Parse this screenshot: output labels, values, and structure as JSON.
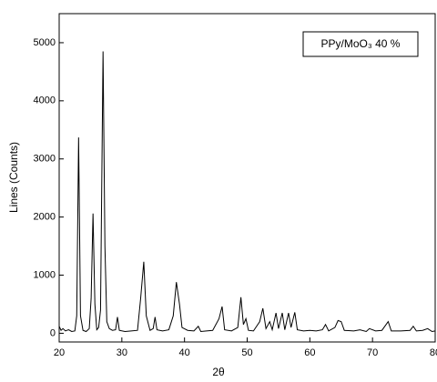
{
  "chart_data": {
    "type": "line",
    "xlabel": "2θ",
    "ylabel": "Lines (Counts)",
    "x": [
      20,
      20.3,
      20.6,
      21,
      21.5,
      22,
      22.5,
      22.8,
      23.1,
      23.4,
      23.8,
      24.3,
      24.8,
      25.1,
      25.4,
      25.7,
      26.0,
      26.3,
      26.6,
      27.0,
      27.3,
      27.6,
      28.0,
      28.5,
      29.0,
      29.3,
      29.6,
      30.5,
      31.5,
      32.5,
      33.0,
      33.5,
      33.9,
      34.5,
      35.0,
      35.3,
      35.6,
      36.5,
      37.5,
      38.2,
      38.7,
      39.2,
      39.6,
      40.5,
      41.5,
      42.2,
      42.6,
      43.5,
      44.5,
      45.5,
      46.0,
      46.4,
      47.5,
      48.5,
      49.0,
      49.4,
      49.8,
      50.2,
      51.0,
      52.0,
      52.5,
      53.0,
      53.6,
      54.0,
      54.6,
      55.0,
      55.6,
      56.0,
      56.6,
      57.0,
      57.6,
      58.0,
      59.0,
      60.0,
      61.0,
      62.0,
      62.5,
      63.0,
      64.0,
      64.5,
      65.0,
      65.5,
      67.0,
      68.0,
      69.0,
      69.5,
      70.5,
      71.5,
      72.5,
      73.0,
      74.5,
      76.0,
      76.5,
      77.0,
      78.0,
      78.8,
      79.5,
      80
    ],
    "series": [
      {
        "name": "PPy/MoO₃ 40 %",
        "color": "#000000",
        "values": [
          120,
          50,
          80,
          40,
          60,
          30,
          40,
          300,
          3370,
          300,
          50,
          30,
          80,
          600,
          2060,
          500,
          60,
          100,
          400,
          4850,
          1500,
          200,
          80,
          50,
          60,
          280,
          50,
          30,
          40,
          50,
          600,
          1230,
          300,
          50,
          80,
          280,
          60,
          40,
          60,
          300,
          880,
          500,
          100,
          50,
          40,
          120,
          30,
          40,
          50,
          250,
          460,
          60,
          40,
          100,
          620,
          150,
          250,
          50,
          40,
          200,
          430,
          80,
          200,
          60,
          350,
          80,
          350,
          60,
          350,
          100,
          360,
          60,
          40,
          50,
          40,
          60,
          150,
          40,
          100,
          220,
          200,
          50,
          40,
          60,
          30,
          80,
          40,
          50,
          200,
          40,
          40,
          50,
          120,
          40,
          50,
          80,
          30,
          40
        ]
      }
    ],
    "xlim": [
      20,
      80
    ],
    "xticks": [
      20,
      30,
      40,
      50,
      60,
      70,
      80
    ],
    "ylim": [
      -150,
      5500
    ],
    "yticks": [
      0,
      1000,
      2000,
      3000,
      4000,
      5000
    ],
    "legend": "upper right"
  }
}
